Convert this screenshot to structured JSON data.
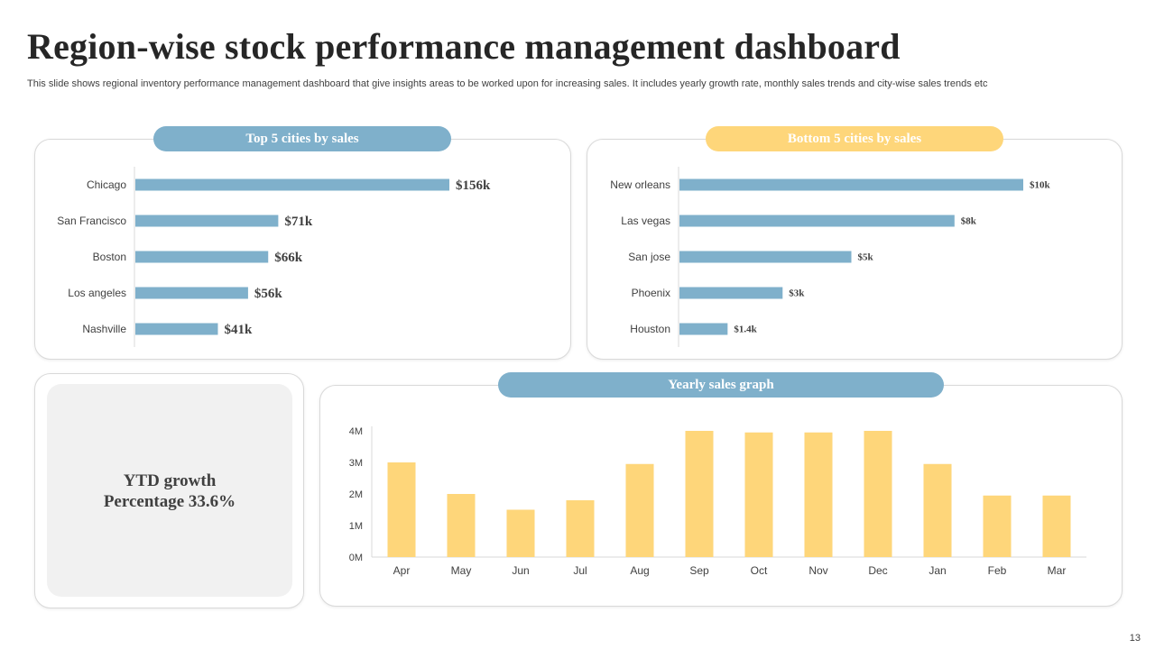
{
  "header": {
    "title": "Region-wise stock performance management dashboard",
    "subtitle": "This slide shows regional inventory performance management dashboard that give insights areas to be worked upon for increasing sales. It includes yearly growth rate, monthly sales trends and city-wise sales trends etc"
  },
  "panels": {
    "top_title": "Top 5 cities by sales",
    "bottom_title": "Bottom 5 cities by sales",
    "yearly_title": "Yearly sales graph"
  },
  "ytd": {
    "line1": "YTD growth",
    "line2": "Percentage 33.6%"
  },
  "page_number": "13",
  "colors": {
    "blue": "#7fb0cb",
    "yellow": "#fed67a",
    "axis": "#d9d9d9",
    "text": "#404040"
  },
  "chart_data": [
    {
      "type": "bar",
      "orientation": "horizontal",
      "title": "Top 5 cities by sales",
      "categories": [
        "Chicago",
        "San Francisco",
        "Boston",
        "Los angeles",
        "Nashville"
      ],
      "values": [
        156,
        71,
        66,
        56,
        41
      ],
      "labels": [
        "$156k",
        "$71k",
        "$66k",
        "$56k",
        "$41k"
      ],
      "unit": "k$"
    },
    {
      "type": "bar",
      "orientation": "horizontal",
      "title": "Bottom 5 cities by sales",
      "categories": [
        "New orleans",
        "Las vegas",
        "San jose",
        "Phoenix",
        "Houston"
      ],
      "values": [
        10,
        8,
        5,
        3,
        1.4
      ],
      "labels": [
        "$10k",
        "$8k",
        "$5k",
        "$3k",
        "$1.4k"
      ],
      "unit": "k$"
    },
    {
      "type": "bar",
      "orientation": "vertical",
      "title": "Yearly sales graph",
      "categories": [
        "Apr",
        "May",
        "Jun",
        "Jul",
        "Aug",
        "Sep",
        "Oct",
        "Nov",
        "Dec",
        "Jan",
        "Feb",
        "Mar"
      ],
      "values": [
        3.0,
        2.0,
        1.5,
        1.8,
        2.95,
        4.0,
        3.95,
        3.95,
        4.0,
        2.95,
        1.95,
        1.95
      ],
      "yticks": [
        "0M",
        "1M",
        "2M",
        "3M",
        "4M"
      ],
      "ylim": [
        0,
        4
      ],
      "unit": "M"
    }
  ]
}
